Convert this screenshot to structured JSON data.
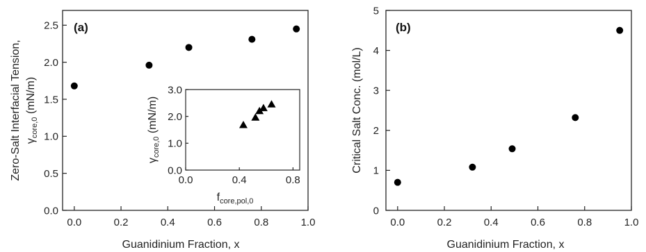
{
  "chart_data": [
    {
      "type": "scatter",
      "panel_label": "(a)",
      "xlabel": "Guanidinium Fraction, x",
      "ylabel_line1": "Zero-Salt Interfacial Tension,",
      "ylabel_line2": "γ",
      "ylabel_line2_sub": "core,0",
      "ylabel_line2_unit": " (mN/m)",
      "xlim": [
        -0.05,
        1.0
      ],
      "ylim": [
        0.0,
        2.7
      ],
      "xticks": [
        "0.0",
        "0.2",
        "0.4",
        "0.6",
        "0.8",
        "1.0"
      ],
      "yticks": [
        "0.0",
        "0.5",
        "1.0",
        "1.5",
        "2.0",
        "2.5"
      ],
      "marker": "circle",
      "x": [
        0.0,
        0.32,
        0.49,
        0.76,
        0.95
      ],
      "y": [
        1.68,
        1.96,
        2.2,
        2.31,
        2.45
      ],
      "inset": {
        "type": "scatter",
        "marker": "triangle",
        "xlabel": "f",
        "xlabel_sub": "core,pol,0",
        "ylabel": "γ",
        "ylabel_sub": "core,0",
        "ylabel_unit": " (mN/m)",
        "xlim": [
          0.0,
          0.85
        ],
        "ylim": [
          0.0,
          3.0
        ],
        "xticks": [
          "0.0",
          "0.4",
          "0.8"
        ],
        "yticks": [
          "0.0",
          "1.0",
          "2.0",
          "3.0"
        ],
        "x": [
          0.43,
          0.52,
          0.55,
          0.58,
          0.64
        ],
        "y": [
          1.68,
          1.96,
          2.2,
          2.31,
          2.45
        ]
      }
    },
    {
      "type": "scatter",
      "panel_label": "(b)",
      "xlabel": "Guanidinium Fraction, x",
      "ylabel": "Critical Salt Conc. (mol/L)",
      "xlim": [
        -0.05,
        1.0
      ],
      "ylim": [
        0,
        5
      ],
      "xticks": [
        "0.0",
        "0.2",
        "0.4",
        "0.6",
        "0.8",
        "1.0"
      ],
      "yticks": [
        "0",
        "1",
        "2",
        "3",
        "4",
        "5"
      ],
      "marker": "circle",
      "x": [
        0.0,
        0.32,
        0.49,
        0.76,
        0.95
      ],
      "y": [
        0.7,
        1.08,
        1.54,
        2.32,
        4.5
      ]
    }
  ]
}
